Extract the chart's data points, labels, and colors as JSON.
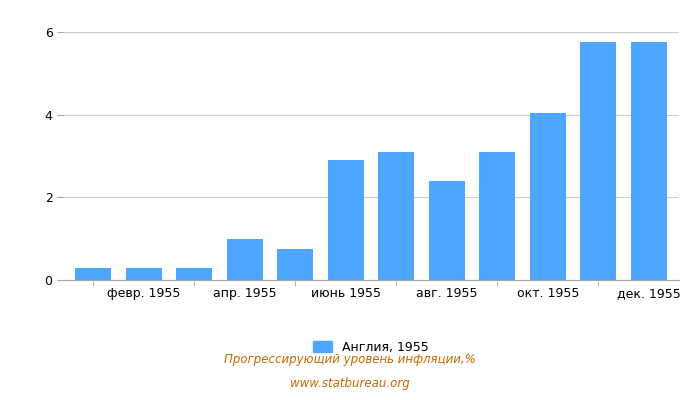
{
  "x_tick_labels": [
    "февр. 1955",
    "апр. 1955",
    "июнь 1955",
    "авг. 1955",
    "окт. 1955",
    "дек. 1955"
  ],
  "x_tick_positions": [
    1,
    3,
    5,
    7,
    9,
    11
  ],
  "values": [
    0.28,
    0.28,
    0.28,
    1.0,
    0.75,
    2.9,
    3.1,
    2.4,
    3.1,
    4.05,
    5.75,
    5.75
  ],
  "bar_color": "#4da6ff",
  "ylim": [
    0,
    6
  ],
  "yticks": [
    0,
    2,
    4,
    6
  ],
  "legend_label": "Англия, 1955",
  "title_line1": "Прогрессирующий уровень инфляции,%",
  "title_line2": "www.statbureau.org",
  "title_color": "#cc6600",
  "background_color": "#ffffff",
  "grid_color": "#cccccc"
}
